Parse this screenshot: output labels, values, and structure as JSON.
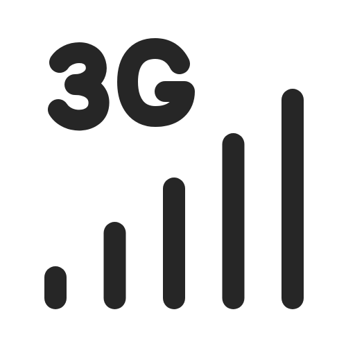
{
  "icon": {
    "name": "3g-signal-icon",
    "network_label": "3G",
    "color": "#262626",
    "background": "#ffffff",
    "signal": {
      "bars_total": 5,
      "bars_filled": 5
    }
  }
}
